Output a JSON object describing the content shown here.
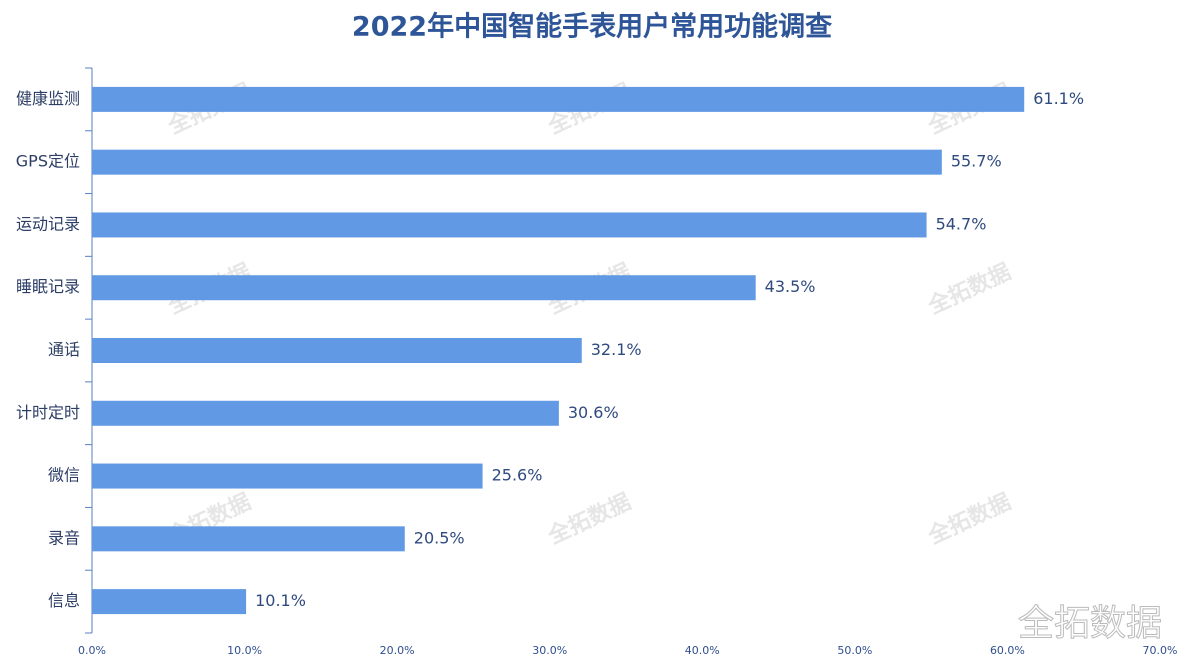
{
  "chart_data": {
    "type": "hbar",
    "title": "2022年中国智能手表用户常用功能调查",
    "categories": [
      "健康监测",
      "GPS定位",
      "运动记录",
      "睡眠记录",
      "通话",
      "计时定时",
      "微信",
      "录音",
      "信息"
    ],
    "values": [
      61.1,
      55.7,
      54.7,
      43.5,
      32.1,
      30.6,
      25.6,
      20.5,
      10.1
    ],
    "value_labels": [
      "61.1%",
      "55.7%",
      "54.7%",
      "43.5%",
      "32.1%",
      "30.6%",
      "25.6%",
      "20.5%",
      "10.1%"
    ],
    "color": "#6199e4",
    "xlim": [
      0,
      70
    ],
    "xticks": [
      {
        "value": 0,
        "label": "0.0%"
      },
      {
        "value": 10,
        "label": "10.0%"
      },
      {
        "value": 20,
        "label": "20.0%"
      },
      {
        "value": 30,
        "label": "30.0%"
      },
      {
        "value": 40,
        "label": "40.0%"
      },
      {
        "value": 50,
        "label": "50.0%"
      },
      {
        "value": 60,
        "label": "60.0%"
      },
      {
        "value": 70,
        "label": "70.0%"
      }
    ],
    "grid": false,
    "watermark": "全拓数据"
  }
}
